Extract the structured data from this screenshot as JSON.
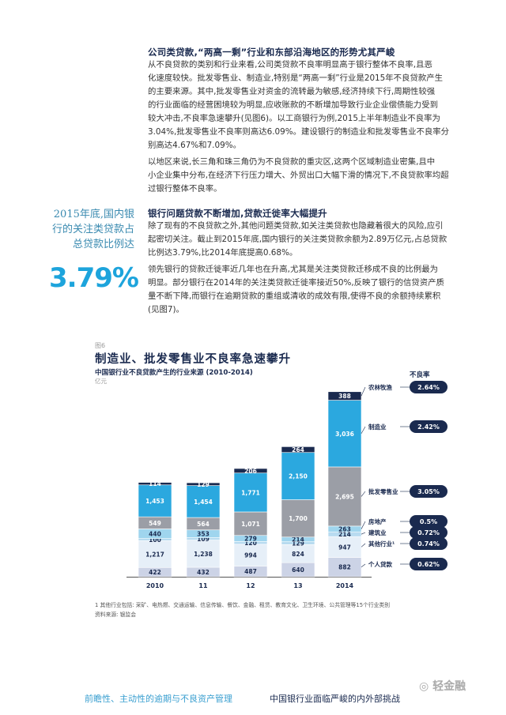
{
  "section1": {
    "heading": "公司类贷款,“两高一剩”行业和东部沿海地区的形势尤其严峻",
    "lines": [
      "从不良贷款的类别和行业来看,公司类贷款不良率明显高于银行整体不良率,且恶",
      "化速度较快。批发零售业、制造业,特别是“两高一剩”行业是2015年不良贷款产生",
      "的主要来源。其中,批发零售业对资金的流转最为敏感,经济持续下行,周期性较强",
      "的行业面临的经营困境较为明显,应收账款的不断增加导致行业企业偿债能力受到",
      "较大冲击,不良率急速攀升(见图6)。以工商银行为例,2015上半年制造业不良率为",
      "3.04%,批发零售业不良率则高达6.09%。建设银行的制造业和批发零售业不良率分",
      "别高达4.67%和7.09%。"
    ]
  },
  "section2": {
    "lines": [
      "以地区来说,长三角和珠三角仍为不良贷款的重灾区,这两个区域制造业密集,且中",
      "小企业集中分布,在经济下行压力增大、外贸出口大幅下滑的情况下,不良贷款率均超",
      "过银行整体不良率。"
    ]
  },
  "section3": {
    "heading": "银行问题贷款不断增加,贷款迁徙率大幅提升",
    "lines": [
      "除了现有的不良贷款之外,其他问题类贷款,如关注类贷款也隐藏着很大的风险,应引",
      "起密切关注。截止到2015年底,国内银行的关注类贷款余额为2.89万亿元,占总贷款",
      "比例达3.79%,比2014年底提高0.68%。"
    ]
  },
  "section4": {
    "lines": [
      "领先银行的贷款迁徙率近几年也在升高,尤其是关注类贷款迁移成不良的比例最为",
      "明显。部分银行在2014年的关注类贷款迁徙率接近50%,反映了银行的信贷资产质",
      "量不断下降,而银行在逾期贷款的重组或清收的成效有限,使得不良的余额持续累积",
      "(见图7)。"
    ]
  },
  "sidebar": {
    "lines": [
      "2015年底,国内银",
      "行的关注类贷款占",
      "总贷款比例达"
    ],
    "big_number": "3.79%"
  },
  "figure": {
    "number": "图6",
    "title": "制造业、批发零售业不良率急速攀升",
    "subtitle": "中国银行业不良贷款产生的行业来源 (2010-2014)",
    "unit": "亿元",
    "rate_header": "不良率",
    "footnote": "1 其他行业包括: 采矿、电热燃、交通运输、信息传输、餐饮、金融、租赁、教育文化、卫生环境、公共管理等15个行业类别",
    "source": "资料来源: 银监会"
  },
  "chart_data": {
    "type": "bar",
    "stacked": true,
    "categories": [
      "2010",
      "11",
      "12",
      "13",
      "2014"
    ],
    "series": [
      {
        "name": "个人贷款",
        "values": [
          422,
          432,
          487,
          640,
          882
        ],
        "color": "#ccd3e6"
      },
      {
        "name": "其他行业¹",
        "values": [
          1217,
          1238,
          994,
          824,
          947
        ],
        "color": "#e6eff8"
      },
      {
        "name": "建筑业",
        "values": [
          100,
          109,
          120,
          129,
          214
        ],
        "color": "#b8dbf0"
      },
      {
        "name": "房地产",
        "values": [
          440,
          353,
          279,
          214,
          263
        ],
        "color": "#9fd5ee"
      },
      {
        "name": "批发零售业",
        "values": [
          549,
          564,
          1071,
          1700,
          2695
        ],
        "color": "#9b9ea6"
      },
      {
        "name": "制造业",
        "values": [
          1453,
          1454,
          1771,
          2150,
          3036
        ],
        "color": "#2ba8df"
      },
      {
        "name": "农林牧渔",
        "values": [
          114,
          129,
          206,
          264,
          388
        ],
        "color": "#1a2a4f"
      }
    ],
    "rates": [
      "2.64%",
      "2.42%",
      "3.05%",
      "0.5%",
      "0.72%",
      "0.74%",
      "0.62%"
    ],
    "rate_labels": [
      "农林牧渔",
      "制造业",
      "批发零售业",
      "房地产",
      "建筑业",
      "其他行业¹",
      "个人贷款"
    ]
  },
  "footer": {
    "left": "前瞻性、主动性的逾期与不良资产管理",
    "right": "中国银行业面临严峻的内外部挑战",
    "watermark": "轻金融"
  }
}
